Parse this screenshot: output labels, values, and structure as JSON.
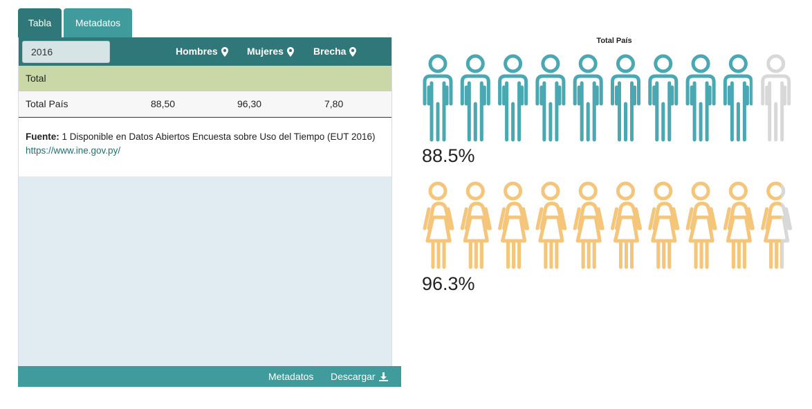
{
  "tabs": [
    {
      "label": "Tabla",
      "active": true
    },
    {
      "label": "Metadatos",
      "active": false
    }
  ],
  "table": {
    "year_selected": "2016",
    "columns": [
      "Hombres",
      "Mujeres",
      "Brecha"
    ],
    "group_label": "Total",
    "rows": [
      {
        "label": "Total País",
        "values": [
          "88,50",
          "96,30",
          "7,80"
        ]
      }
    ]
  },
  "source": {
    "label": "Fuente:",
    "text": "1 Disponible en Datos Abiertos Encuesta sobre Uso del Tiempo (EUT 2016)",
    "link": "https://www.ine.gov.py/"
  },
  "footer": {
    "metadata_label": "Metadatos",
    "download_label": "Descargar"
  },
  "chart_data": {
    "type": "pictograph",
    "title": "Total País",
    "icons_per_row": 10,
    "series": [
      {
        "name": "Hombres",
        "value": 88.5,
        "label": "88.5%",
        "color": "#4aa8b3"
      },
      {
        "name": "Mujeres",
        "value": 96.3,
        "label": "96.3%",
        "color": "#f5c57a"
      }
    ],
    "empty_color": "#d8d8d8"
  }
}
